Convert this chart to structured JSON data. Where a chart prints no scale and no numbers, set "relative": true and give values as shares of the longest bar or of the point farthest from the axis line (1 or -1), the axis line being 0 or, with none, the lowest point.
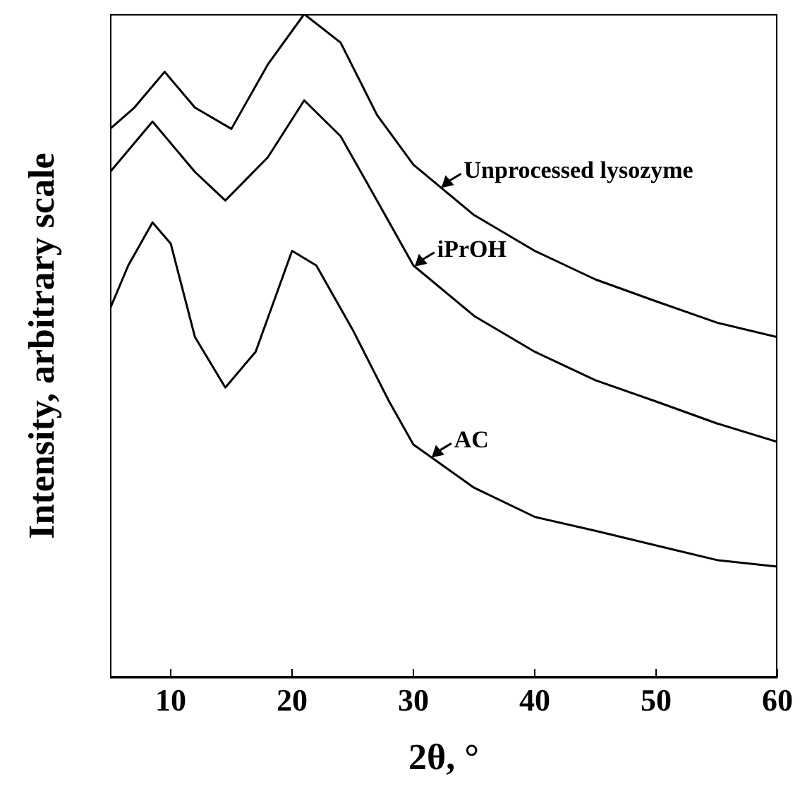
{
  "chart_data": {
    "type": "line",
    "relative": true,
    "xlabel": "2θ, °",
    "ylabel": "Intensity, arbitrary scale",
    "xlim": [
      5,
      60
    ],
    "xticks": [
      10,
      20,
      30,
      40,
      50,
      60
    ],
    "tick_labels": "x",
    "grid": false,
    "legend": "right",
    "marker": "none",
    "line_style": "solid",
    "series": [
      {
        "name": "Unprocessed lysozyme",
        "color": "#000000",
        "x": [
          5,
          7,
          9.5,
          12,
          15,
          18,
          21,
          24,
          27,
          30,
          35,
          40,
          45,
          50,
          55,
          60
        ],
        "values": [
          0.827,
          0.859,
          0.913,
          0.859,
          0.827,
          0.924,
          1,
          0.957,
          0.848,
          0.773,
          0.697,
          0.643,
          0.6,
          0.567,
          0.535,
          0.513
        ]
      },
      {
        "name": "iPrOH",
        "color": "#000000",
        "x": [
          5,
          8.5,
          12,
          14.5,
          18,
          21,
          24,
          27,
          30,
          35,
          40,
          45,
          50,
          55,
          60
        ],
        "values": [
          0.762,
          0.838,
          0.762,
          0.719,
          0.784,
          0.87,
          0.816,
          0.719,
          0.621,
          0.545,
          0.491,
          0.448,
          0.416,
          0.383,
          0.355
        ]
      },
      {
        "name": "AC",
        "color": "#000000",
        "x": [
          5,
          6.5,
          8.5,
          10,
          12,
          14.5,
          17,
          20,
          22,
          25,
          28,
          30,
          35,
          40,
          45,
          50,
          55,
          60
        ],
        "values": [
          0.556,
          0.621,
          0.686,
          0.654,
          0.513,
          0.437,
          0.491,
          0.643,
          0.621,
          0.524,
          0.416,
          0.351,
          0.286,
          0.242,
          0.221,
          0.199,
          0.177,
          0.167
        ]
      }
    ]
  }
}
